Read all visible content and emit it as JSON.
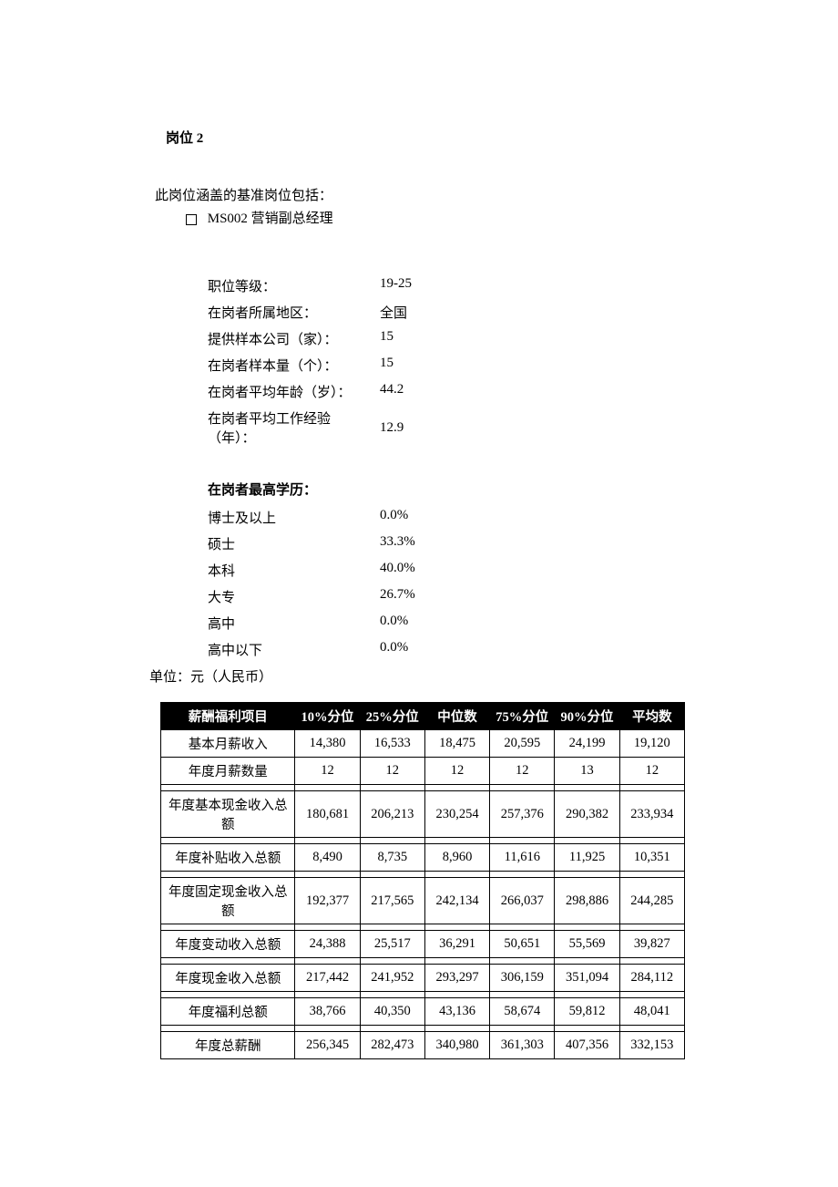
{
  "title": "岗位 2",
  "intro": "此岗位涵盖的基准岗位包括：",
  "benchmark": "MS002 营销副总经理",
  "info": {
    "level_label": "职位等级：",
    "level_value": "19-25",
    "region_label": "在岗者所属地区：",
    "region_value": "全国",
    "companies_label": "提供样本公司（家）：",
    "companies_value": "15",
    "sample_label": "在岗者样本量（个）：",
    "sample_value": "15",
    "age_label": "在岗者平均年龄（岁）：",
    "age_value": "44.2",
    "exp_label_line1": "在岗者平均工作经验",
    "exp_label_line2": "（年）：",
    "exp_value": "12.9"
  },
  "edu": {
    "header": "在岗者最高学历：",
    "rows": [
      {
        "label": "博士及以上",
        "value": "0.0%"
      },
      {
        "label": "硕士",
        "value": "33.3%"
      },
      {
        "label": "本科",
        "value": "40.0%"
      },
      {
        "label": "大专",
        "value": "26.7%"
      },
      {
        "label": "高中",
        "value": "0.0%"
      },
      {
        "label": "高中以下",
        "value": "0.0%"
      }
    ]
  },
  "unit": "单位：元（人民币）",
  "salary": {
    "columns": [
      "薪酬福利项目",
      "10%分位",
      "25%分位",
      "中位数",
      "75%分位",
      "90%分位",
      "平均数"
    ],
    "rows": [
      {
        "label": "基本月薪收入",
        "v": [
          "14,380",
          "16,533",
          "18,475",
          "20,595",
          "24,199",
          "19,120"
        ],
        "spacer_after": false
      },
      {
        "label": "年度月薪数量",
        "v": [
          "12",
          "12",
          "12",
          "12",
          "13",
          "12"
        ],
        "spacer_after": true
      },
      {
        "label": "年度基本现金收入总额",
        "v": [
          "180,681",
          "206,213",
          "230,254",
          "257,376",
          "290,382",
          "233,934"
        ],
        "spacer_after": true
      },
      {
        "label": "年度补贴收入总额",
        "v": [
          "8,490",
          "8,735",
          "8,960",
          "11,616",
          "11,925",
          "10,351"
        ],
        "spacer_after": true
      },
      {
        "label": "年度固定现金收入总额",
        "v": [
          "192,377",
          "217,565",
          "242,134",
          "266,037",
          "298,886",
          "244,285"
        ],
        "spacer_after": true
      },
      {
        "label": "年度变动收入总额",
        "v": [
          "24,388",
          "25,517",
          "36,291",
          "50,651",
          "55,569",
          "39,827"
        ],
        "spacer_after": true
      },
      {
        "label": "年度现金收入总额",
        "v": [
          "217,442",
          "241,952",
          "293,297",
          "306,159",
          "351,094",
          "284,112"
        ],
        "spacer_after": true
      },
      {
        "label": "年度福利总额",
        "v": [
          "38,766",
          "40,350",
          "43,136",
          "58,674",
          "59,812",
          "48,041"
        ],
        "spacer_after": true
      },
      {
        "label": "年度总薪酬",
        "v": [
          "256,345",
          "282,473",
          "340,980",
          "361,303",
          "407,356",
          "332,153"
        ],
        "spacer_after": false
      }
    ]
  }
}
